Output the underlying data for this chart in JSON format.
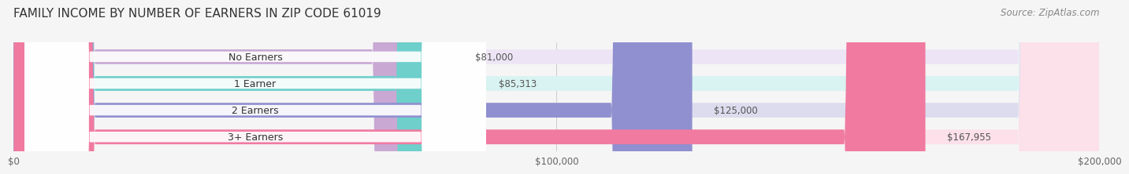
{
  "title": "FAMILY INCOME BY NUMBER OF EARNERS IN ZIP CODE 61019",
  "source": "Source: ZipAtlas.com",
  "categories": [
    "No Earners",
    "1 Earner",
    "2 Earners",
    "3+ Earners"
  ],
  "values": [
    81000,
    85313,
    125000,
    167955
  ],
  "value_labels": [
    "$81,000",
    "$85,313",
    "$125,000",
    "$167,955"
  ],
  "bar_colors": [
    "#c9a8d4",
    "#6ecfcb",
    "#9090d0",
    "#f07aa0"
  ],
  "bar_bg_colors": [
    "#ede5f5",
    "#d8f3f1",
    "#dcdcee",
    "#fce0ea"
  ],
  "label_bg_colors": [
    "#e8daf0",
    "#c0eae7",
    "#d0d0e8",
    "#f8c8d8"
  ],
  "xmax": 200000,
  "x_ticks": [
    0,
    100000,
    200000
  ],
  "x_tick_labels": [
    "$0",
    "$100,000",
    "$200,000"
  ],
  "background_color": "#f5f5f5",
  "bar_height": 0.55,
  "title_fontsize": 11,
  "source_fontsize": 8.5,
  "label_fontsize": 9,
  "value_fontsize": 8.5
}
